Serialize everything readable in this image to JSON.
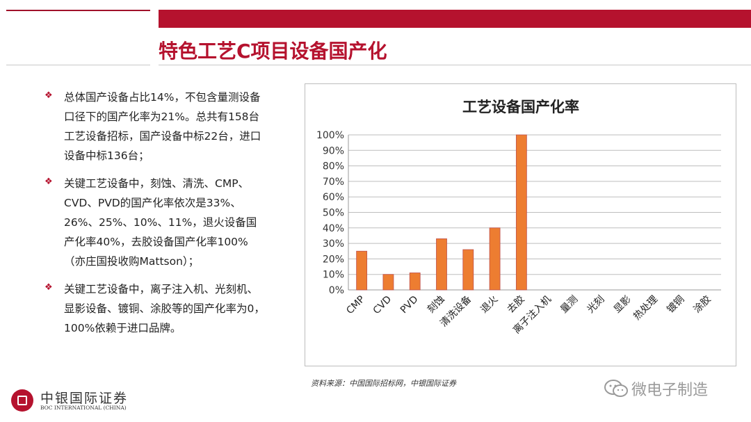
{
  "page": {
    "title": "特色工艺C项目设备国产化",
    "source": "资料来源：中国国际招标网，中银国际证券"
  },
  "bullets": [
    "总体国产设备占比14%，不包含量测设备口径下的国产化率为21%。总共有158台工艺设备招标，国产设备中标22台，进口设备中标136台；",
    "关键工艺设备中，刻蚀、清洗、CMP、CVD、PVD的国产化率依次是33%、26%、25%、10%、11%，退火设备国产化率40%，去胶设备国产化率100%（亦庄国投收购Mattson）；",
    "关键工艺设备中，离子注入机、光刻机、显影设备、镀铜、涂胶等的国产化率为0，100%依赖于进口品牌。"
  ],
  "logo": {
    "cn": "中银国际证券",
    "en": "BOC INTERNATIONAL (CHINA)"
  },
  "watermark": "微电子制造",
  "chart_data": {
    "type": "bar",
    "title": "工艺设备国产化率",
    "categories": [
      "CMP",
      "CVD",
      "PVD",
      "刻蚀",
      "清洗设备",
      "退火",
      "去胶",
      "离子注入机",
      "量测",
      "光刻",
      "显影",
      "热处理",
      "镀铜",
      "涂胶"
    ],
    "values": [
      25,
      10,
      11,
      33,
      26,
      40,
      100,
      0,
      0,
      0,
      0,
      0,
      0,
      0
    ],
    "ylim": [
      0,
      100
    ],
    "yticks": [
      "0%",
      "10%",
      "20%",
      "30%",
      "40%",
      "50%",
      "60%",
      "70%",
      "80%",
      "90%",
      "100%"
    ],
    "grid": true,
    "bar_color": "#ed7d31",
    "bar_stroke": "#c0504d"
  }
}
